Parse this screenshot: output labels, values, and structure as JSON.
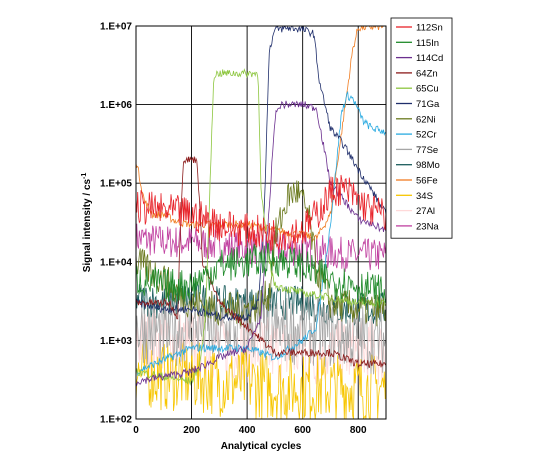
{
  "chart_data": {
    "type": "line",
    "title": "",
    "xlabel": "Analytical cycles",
    "ylabel": "Signal intensity / cs",
    "ylabel_superscript": "-1",
    "x_ticks": [
      0,
      200,
      400,
      600,
      800
    ],
    "xlim": [
      0,
      900
    ],
    "y_scale": "log",
    "y_ticks": [
      "1.E+02",
      "1.E+03",
      "1.E+04",
      "1.E+05",
      "1.E+06",
      "1.E+07"
    ],
    "ylim": [
      100,
      10000000
    ],
    "grid": true,
    "legend_position": "right",
    "series": [
      {
        "name": "112Sn",
        "color": "#e8232a",
        "points": [
          [
            0,
            50000
          ],
          [
            100,
            45000
          ],
          [
            200,
            40000
          ],
          [
            300,
            30000
          ],
          [
            400,
            25000
          ],
          [
            500,
            22000
          ],
          [
            600,
            25000
          ],
          [
            650,
            40000
          ],
          [
            700,
            75000
          ],
          [
            720,
            85000
          ],
          [
            760,
            80000
          ],
          [
            800,
            60000
          ],
          [
            850,
            45000
          ],
          [
            900,
            40000
          ]
        ]
      },
      {
        "name": "115In",
        "color": "#1f8a2a",
        "points": [
          [
            0,
            6000
          ],
          [
            100,
            5000
          ],
          [
            200,
            5000
          ],
          [
            260,
            7000
          ],
          [
            300,
            9000
          ],
          [
            400,
            10000
          ],
          [
            500,
            11000
          ],
          [
            550,
            10000
          ],
          [
            600,
            9000
          ],
          [
            650,
            7000
          ],
          [
            700,
            6000
          ],
          [
            800,
            5000
          ],
          [
            900,
            4000
          ]
        ]
      },
      {
        "name": "114Cd",
        "color": "#6b2f8f",
        "points": [
          [
            0,
            300
          ],
          [
            200,
            400
          ],
          [
            300,
            600
          ],
          [
            400,
            800
          ],
          [
            450,
            2000
          ],
          [
            480,
            50000
          ],
          [
            500,
            700000
          ],
          [
            520,
            1000000
          ],
          [
            600,
            1000000
          ],
          [
            650,
            900000
          ],
          [
            700,
            100000
          ],
          [
            750,
            60000
          ],
          [
            800,
            35000
          ],
          [
            850,
            30000
          ],
          [
            900,
            25000
          ]
        ]
      },
      {
        "name": "64Zn",
        "color": "#8b1a1a",
        "points": [
          [
            0,
            3000
          ],
          [
            120,
            3000
          ],
          [
            150,
            2000
          ],
          [
            160,
            30000
          ],
          [
            170,
            200000
          ],
          [
            220,
            200000
          ],
          [
            240,
            10000
          ],
          [
            300,
            3000
          ],
          [
            400,
            1500
          ],
          [
            500,
            700
          ],
          [
            600,
            700
          ],
          [
            700,
            700
          ],
          [
            800,
            500
          ],
          [
            900,
            500
          ]
        ]
      },
      {
        "name": "65Cu",
        "color": "#8dc63f",
        "points": [
          [
            0,
            400
          ],
          [
            200,
            300
          ],
          [
            230,
            500
          ],
          [
            250,
            2000
          ],
          [
            260,
            20000
          ],
          [
            280,
            2400000
          ],
          [
            300,
            2500000
          ],
          [
            400,
            2500000
          ],
          [
            440,
            2500000
          ],
          [
            450,
            80000
          ],
          [
            480,
            10000
          ],
          [
            500,
            5000
          ],
          [
            600,
            4000
          ],
          [
            700,
            3500
          ],
          [
            800,
            3000
          ],
          [
            900,
            3000
          ]
        ]
      },
      {
        "name": "71Ga",
        "color": "#1f2e6b",
        "points": [
          [
            0,
            3000
          ],
          [
            100,
            2500
          ],
          [
            200,
            2500
          ],
          [
            300,
            2000
          ],
          [
            400,
            2000
          ],
          [
            440,
            3000
          ],
          [
            460,
            30000
          ],
          [
            480,
            5000000
          ],
          [
            500,
            9000000
          ],
          [
            560,
            9500000
          ],
          [
            600,
            9000000
          ],
          [
            640,
            8000000
          ],
          [
            660,
            2000000
          ],
          [
            700,
            500000
          ],
          [
            750,
            300000
          ],
          [
            800,
            150000
          ],
          [
            850,
            80000
          ],
          [
            900,
            40000
          ]
        ]
      },
      {
        "name": "62Ni",
        "color": "#6b7a1f",
        "points": [
          [
            0,
            10000
          ],
          [
            100,
            6000
          ],
          [
            150,
            4000
          ],
          [
            200,
            3000
          ],
          [
            300,
            2500
          ],
          [
            400,
            2500
          ],
          [
            450,
            3000
          ],
          [
            480,
            4000
          ],
          [
            500,
            20000
          ],
          [
            550,
            70000
          ],
          [
            580,
            80000
          ],
          [
            620,
            40000
          ],
          [
            650,
            8000
          ],
          [
            700,
            3000
          ],
          [
            800,
            2500
          ],
          [
            900,
            2500
          ]
        ]
      },
      {
        "name": "52Cr",
        "color": "#29aae1",
        "points": [
          [
            0,
            400
          ],
          [
            200,
            800
          ],
          [
            400,
            800
          ],
          [
            500,
            600
          ],
          [
            600,
            1000
          ],
          [
            650,
            1500
          ],
          [
            700,
            30000
          ],
          [
            740,
            800000
          ],
          [
            760,
            1300000
          ],
          [
            780,
            1200000
          ],
          [
            820,
            600000
          ],
          [
            850,
            500000
          ],
          [
            900,
            450000
          ]
        ]
      },
      {
        "name": "77Se",
        "color": "#a6a6a6",
        "points": [
          [
            0,
            1500
          ],
          [
            100,
            1200
          ],
          [
            200,
            1500
          ],
          [
            300,
            1200
          ],
          [
            400,
            1500
          ],
          [
            500,
            1300
          ],
          [
            600,
            1400
          ],
          [
            700,
            1200
          ],
          [
            800,
            1100
          ],
          [
            900,
            1000
          ]
        ]
      },
      {
        "name": "98Mo",
        "color": "#1a5c5c",
        "points": [
          [
            0,
            3500
          ],
          [
            100,
            3000
          ],
          [
            200,
            3500
          ],
          [
            300,
            3000
          ],
          [
            400,
            3000
          ],
          [
            500,
            3000
          ],
          [
            600,
            3000
          ],
          [
            700,
            2500
          ],
          [
            800,
            2500
          ],
          [
            900,
            2500
          ]
        ]
      },
      {
        "name": "56Fe",
        "color": "#f07d22",
        "points": [
          [
            0,
            200000
          ],
          [
            30,
            60000
          ],
          [
            60,
            40000
          ],
          [
            100,
            40000
          ],
          [
            150,
            32000
          ],
          [
            200,
            30000
          ],
          [
            300,
            30000
          ],
          [
            400,
            30000
          ],
          [
            500,
            25000
          ],
          [
            600,
            22000
          ],
          [
            650,
            20000
          ],
          [
            700,
            40000
          ],
          [
            750,
            800000
          ],
          [
            780,
            5000000
          ],
          [
            800,
            9500000
          ],
          [
            900,
            10000000
          ]
        ]
      },
      {
        "name": "34S",
        "color": "#f7c600",
        "points": [
          [
            0,
            400
          ],
          [
            100,
            350
          ],
          [
            200,
            350
          ],
          [
            300,
            300
          ],
          [
            400,
            300
          ],
          [
            500,
            250
          ],
          [
            600,
            250
          ],
          [
            700,
            250
          ],
          [
            800,
            250
          ],
          [
            900,
            250
          ]
        ]
      },
      {
        "name": "27Al",
        "color": "#ffd9d9",
        "points": [
          [
            0,
            1000
          ],
          [
            200,
            900
          ],
          [
            400,
            800
          ],
          [
            600,
            700
          ],
          [
            800,
            700
          ],
          [
            900,
            700
          ]
        ]
      },
      {
        "name": "23Na",
        "color": "#c040a0",
        "points": [
          [
            0,
            20000
          ],
          [
            100,
            18000
          ],
          [
            200,
            18000
          ],
          [
            300,
            16000
          ],
          [
            400,
            15000
          ],
          [
            500,
            15000
          ],
          [
            600,
            14000
          ],
          [
            700,
            13000
          ],
          [
            800,
            12000
          ],
          [
            900,
            12000
          ]
        ]
      }
    ]
  }
}
